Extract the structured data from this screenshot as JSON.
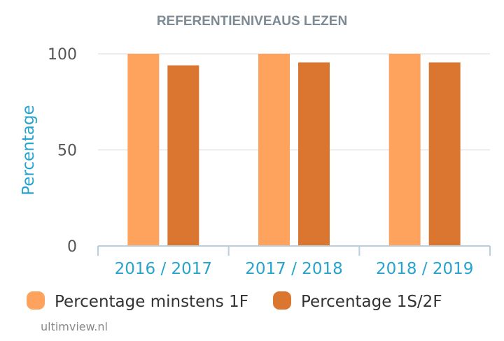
{
  "chart_data": {
    "type": "bar",
    "title": "REFERENTIENIVEAUS LEZEN",
    "xlabel": "",
    "ylabel": "Percentage",
    "categories": [
      "2016 / 2017",
      "2017 / 2018",
      "2018 / 2019"
    ],
    "series": [
      {
        "name": "Percentage minstens 1F",
        "color": "#fda35d",
        "values": [
          100,
          100,
          100
        ]
      },
      {
        "name": "Percentage 1S/2F",
        "color": "#da7630",
        "values": [
          94,
          95.5,
          95.5
        ]
      }
    ],
    "ylim": [
      0,
      100
    ],
    "yticks": [
      0,
      50,
      100
    ],
    "grid": true,
    "legend": "bottom"
  },
  "credit": "ultimview.nl"
}
